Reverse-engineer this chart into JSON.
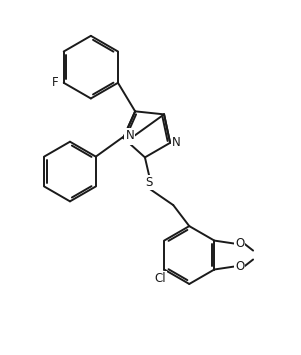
{
  "background_color": "#ffffff",
  "line_color": "#1a1a1a",
  "line_width": 1.4,
  "font_size": 8.5,
  "figsize": [
    3.01,
    3.55
  ],
  "dpi": 100,
  "xlim": [
    0,
    10
  ],
  "ylim": [
    0,
    11.8
  ]
}
